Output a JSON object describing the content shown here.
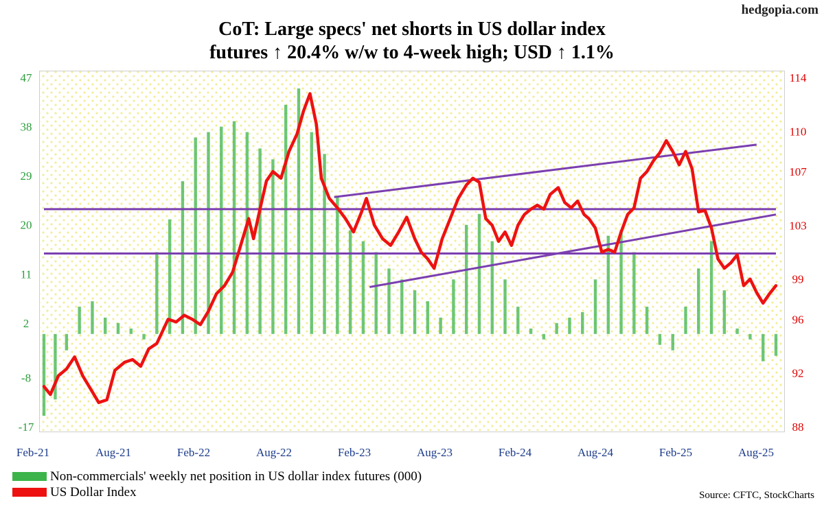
{
  "site": "hedgopia.com",
  "title_line1": "CoT: Large specs' net shorts in US dollar index",
  "title_line2": "futures ↑ 20.4% w/w to 4-week high; USD ↑ 1.1%",
  "source": "Source: CFTC, StockCharts",
  "colors": {
    "bars": "#3cb44b",
    "line": "#ee1111",
    "trend": "#7b3fb0",
    "left_axis": "#2a9d3a",
    "right_axis": "#e00000",
    "x_axis": "#1a3a8a",
    "dots": "#f2ee9a"
  },
  "chart_data": {
    "type": "bar+line",
    "title": "CoT: Large specs' net shorts in US dollar index futures ↑ 20.4% w/w to 4-week high; USD ↑ 1.1%",
    "x_ticks": [
      "Feb-21",
      "Aug-21",
      "Feb-22",
      "Aug-22",
      "Feb-23",
      "Aug-23",
      "Feb-24",
      "Aug-24",
      "Feb-25",
      "Aug-25"
    ],
    "x_range": [
      2021.08,
      2025.62
    ],
    "left_axis": {
      "ticks": [
        "47",
        "38",
        "29",
        "20",
        "11",
        "2",
        "-8",
        "-17"
      ],
      "ylim": [
        -17,
        47
      ]
    },
    "right_axis": {
      "ticks": [
        "114",
        "110",
        "107",
        "103",
        "99",
        "96",
        "92",
        "88"
      ],
      "ylim": [
        88,
        114
      ]
    },
    "series": [
      {
        "name": "Non-commercials' weekly net position in US dollar index futures (000)",
        "type": "bar",
        "axis": "left",
        "points": [
          [
            2021.08,
            -15
          ],
          [
            2021.15,
            -12
          ],
          [
            2021.22,
            -3
          ],
          [
            2021.3,
            5
          ],
          [
            2021.38,
            6
          ],
          [
            2021.46,
            3
          ],
          [
            2021.54,
            2
          ],
          [
            2021.62,
            1
          ],
          [
            2021.7,
            -1
          ],
          [
            2021.78,
            15
          ],
          [
            2021.86,
            21
          ],
          [
            2021.94,
            28
          ],
          [
            2022.02,
            36
          ],
          [
            2022.1,
            37
          ],
          [
            2022.18,
            38
          ],
          [
            2022.26,
            39
          ],
          [
            2022.34,
            37
          ],
          [
            2022.42,
            34
          ],
          [
            2022.5,
            32
          ],
          [
            2022.58,
            42
          ],
          [
            2022.66,
            45
          ],
          [
            2022.74,
            37
          ],
          [
            2022.82,
            33
          ],
          [
            2022.9,
            25
          ],
          [
            2022.98,
            19
          ],
          [
            2023.06,
            17
          ],
          [
            2023.14,
            15
          ],
          [
            2023.22,
            12
          ],
          [
            2023.3,
            10
          ],
          [
            2023.38,
            8
          ],
          [
            2023.46,
            6
          ],
          [
            2023.54,
            3
          ],
          [
            2023.62,
            10
          ],
          [
            2023.7,
            20
          ],
          [
            2023.78,
            22
          ],
          [
            2023.86,
            17
          ],
          [
            2023.94,
            10
          ],
          [
            2024.02,
            5
          ],
          [
            2024.1,
            1
          ],
          [
            2024.18,
            -1
          ],
          [
            2024.26,
            2
          ],
          [
            2024.34,
            3
          ],
          [
            2024.42,
            4
          ],
          [
            2024.5,
            10
          ],
          [
            2024.58,
            18
          ],
          [
            2024.66,
            19
          ],
          [
            2024.74,
            15
          ],
          [
            2024.82,
            5
          ],
          [
            2024.9,
            -2
          ],
          [
            2024.98,
            -3
          ],
          [
            2025.06,
            5
          ],
          [
            2025.14,
            12
          ],
          [
            2025.22,
            17
          ],
          [
            2025.3,
            8
          ],
          [
            2025.38,
            1
          ],
          [
            2025.46,
            -1
          ],
          [
            2025.54,
            -5
          ],
          [
            2025.62,
            -4
          ]
        ]
      },
      {
        "name": "US Dollar Index",
        "type": "line",
        "axis": "right",
        "points": [
          [
            2021.08,
            91.0
          ],
          [
            2021.12,
            90.4
          ],
          [
            2021.17,
            91.8
          ],
          [
            2021.22,
            92.3
          ],
          [
            2021.27,
            93.2
          ],
          [
            2021.32,
            91.8
          ],
          [
            2021.37,
            90.8
          ],
          [
            2021.42,
            89.8
          ],
          [
            2021.47,
            90.0
          ],
          [
            2021.52,
            92.2
          ],
          [
            2021.58,
            92.8
          ],
          [
            2021.63,
            93.0
          ],
          [
            2021.68,
            92.5
          ],
          [
            2021.73,
            93.8
          ],
          [
            2021.78,
            94.2
          ],
          [
            2021.85,
            96.0
          ],
          [
            2021.9,
            95.8
          ],
          [
            2021.95,
            96.3
          ],
          [
            2022.0,
            96.0
          ],
          [
            2022.05,
            95.6
          ],
          [
            2022.1,
            96.6
          ],
          [
            2022.15,
            97.9
          ],
          [
            2022.2,
            98.5
          ],
          [
            2022.25,
            99.5
          ],
          [
            2022.3,
            101.5
          ],
          [
            2022.35,
            103.5
          ],
          [
            2022.38,
            102.0
          ],
          [
            2022.42,
            104.2
          ],
          [
            2022.46,
            106.3
          ],
          [
            2022.5,
            107.0
          ],
          [
            2022.55,
            106.5
          ],
          [
            2022.6,
            108.5
          ],
          [
            2022.65,
            109.8
          ],
          [
            2022.69,
            111.5
          ],
          [
            2022.73,
            112.8
          ],
          [
            2022.77,
            110.5
          ],
          [
            2022.8,
            106.5
          ],
          [
            2022.85,
            105.0
          ],
          [
            2022.9,
            104.3
          ],
          [
            2022.95,
            103.5
          ],
          [
            2023.0,
            102.5
          ],
          [
            2023.05,
            104.0
          ],
          [
            2023.08,
            105.0
          ],
          [
            2023.13,
            103.0
          ],
          [
            2023.18,
            102.0
          ],
          [
            2023.23,
            101.5
          ],
          [
            2023.28,
            102.5
          ],
          [
            2023.33,
            103.6
          ],
          [
            2023.38,
            102.0
          ],
          [
            2023.42,
            101.0
          ],
          [
            2023.46,
            100.5
          ],
          [
            2023.5,
            99.8
          ],
          [
            2023.55,
            102.0
          ],
          [
            2023.6,
            103.5
          ],
          [
            2023.65,
            105.0
          ],
          [
            2023.7,
            106.0
          ],
          [
            2023.74,
            106.5
          ],
          [
            2023.78,
            106.2
          ],
          [
            2023.82,
            103.5
          ],
          [
            2023.86,
            103.0
          ],
          [
            2023.9,
            101.8
          ],
          [
            2023.94,
            102.5
          ],
          [
            2023.98,
            101.5
          ],
          [
            2024.02,
            103.0
          ],
          [
            2024.06,
            103.8
          ],
          [
            2024.1,
            104.2
          ],
          [
            2024.14,
            104.5
          ],
          [
            2024.18,
            104.2
          ],
          [
            2024.22,
            105.3
          ],
          [
            2024.27,
            105.8
          ],
          [
            2024.31,
            104.7
          ],
          [
            2024.35,
            104.3
          ],
          [
            2024.39,
            104.8
          ],
          [
            2024.43,
            103.8
          ],
          [
            2024.46,
            103.5
          ],
          [
            2024.5,
            102.8
          ],
          [
            2024.54,
            101.0
          ],
          [
            2024.58,
            101.2
          ],
          [
            2024.62,
            101.0
          ],
          [
            2024.66,
            102.5
          ],
          [
            2024.7,
            103.8
          ],
          [
            2024.74,
            104.3
          ],
          [
            2024.78,
            106.5
          ],
          [
            2024.82,
            107.0
          ],
          [
            2024.86,
            107.8
          ],
          [
            2024.9,
            108.4
          ],
          [
            2024.94,
            109.3
          ],
          [
            2024.98,
            108.5
          ],
          [
            2025.02,
            107.5
          ],
          [
            2025.06,
            108.5
          ],
          [
            2025.1,
            107.2
          ],
          [
            2025.14,
            104.0
          ],
          [
            2025.18,
            104.1
          ],
          [
            2025.22,
            102.8
          ],
          [
            2025.26,
            100.5
          ],
          [
            2025.3,
            99.8
          ],
          [
            2025.34,
            100.2
          ],
          [
            2025.38,
            100.8
          ],
          [
            2025.42,
            98.5
          ],
          [
            2025.46,
            99.0
          ],
          [
            2025.5,
            98.0
          ],
          [
            2025.54,
            97.2
          ],
          [
            2025.58,
            97.9
          ],
          [
            2025.62,
            98.5
          ]
        ]
      }
    ],
    "trendlines_right_axis": [
      [
        [
          2021.08,
          104.2
        ],
        [
          2025.62,
          104.2
        ]
      ],
      [
        [
          2021.08,
          100.9
        ],
        [
          2025.62,
          100.9
        ]
      ],
      [
        [
          2022.88,
          105.1
        ],
        [
          2025.5,
          109.0
        ]
      ],
      [
        [
          2023.1,
          98.4
        ],
        [
          2025.62,
          103.8
        ]
      ]
    ]
  },
  "legend": {
    "bars_label": "Non-commercials' weekly net position in US dollar index futures (000)",
    "line_label": "US Dollar Index"
  }
}
